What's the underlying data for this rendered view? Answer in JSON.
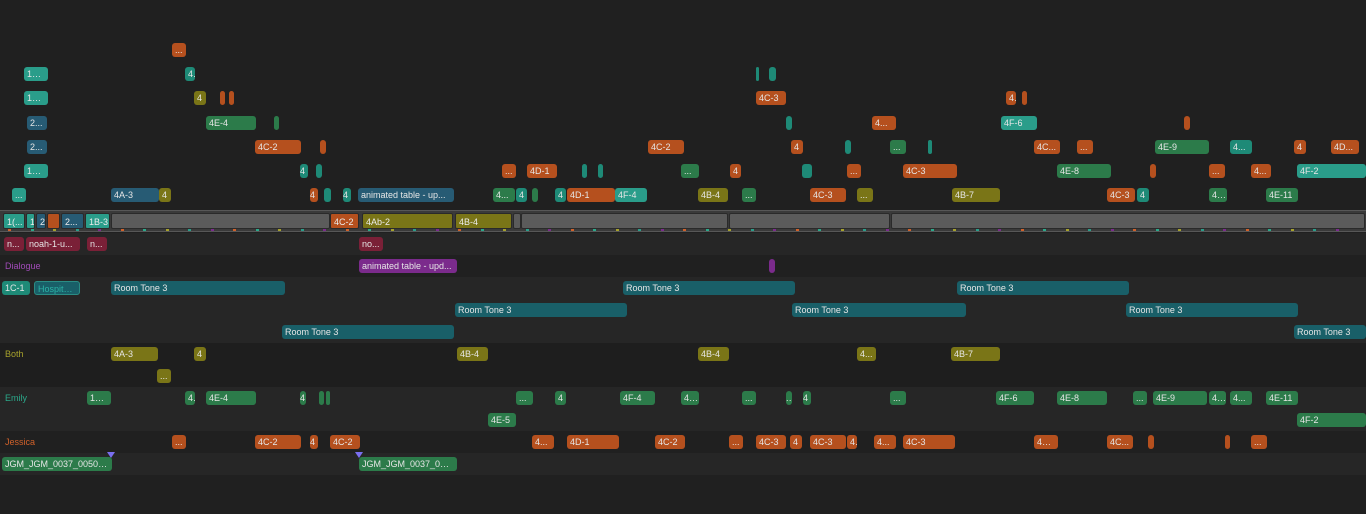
{
  "colors": {
    "teal": "#1e8a77",
    "teal_light": "#2a9d8a",
    "blue": "#275b74",
    "orange": "#b5501e",
    "olive": "#7a7517",
    "green": "#2c7b4a",
    "dark_teal": "#195f68",
    "maroon": "#7a2037",
    "purple": "#7b2b8c",
    "primary_gray": "#5b5b5b"
  },
  "roles": {
    "dialogue": "Dialogue",
    "both": "Both",
    "emily": "Emily",
    "jessica": "Jessica"
  },
  "lanes": {
    "row0": [
      "..."
    ],
    "row1": [
      "1C...",
      "4",
      "",
      ""
    ],
    "row2": [
      "1C...",
      "4",
      "",
      "",
      "4C-3",
      "4",
      ""
    ],
    "row3": [
      "2...",
      "4E-4",
      "",
      "",
      "4...",
      "4F-6",
      ""
    ],
    "row4": [
      "2...",
      "4C-2",
      "",
      "4C-2",
      "4",
      "",
      "...",
      "",
      "4C...",
      "...",
      "4E-9",
      "4...",
      "4",
      "4D..."
    ],
    "row5": [
      "1C...",
      "4",
      "",
      "...",
      "4D-1",
      "",
      "",
      "...",
      "4",
      "",
      "...",
      "4C-3",
      "4E-8",
      "",
      "...",
      "4...",
      "4F-2"
    ],
    "row6": [
      "...",
      "4A-3",
      "4",
      "4",
      "",
      "4",
      "animated table - up...",
      "4...",
      "4",
      "",
      "4",
      "4D-1",
      "4F-4",
      "4B-4",
      "...",
      "4C-3",
      "...",
      "4B-7",
      "4C-3",
      "4",
      "4...",
      "4E-11"
    ]
  },
  "primary": [
    "1(...",
    "1",
    "2",
    "",
    "2...",
    "1B-3",
    "",
    "4C-2",
    "4Ab-2",
    "4B-4",
    "",
    "",
    "",
    ""
  ],
  "below": {
    "maroon": [
      "n...",
      "noah-1-u...",
      "n...",
      "no..."
    ],
    "dialogue": [
      "animated table - upd...",
      ""
    ],
    "room1": [
      "1C-1",
      "Hospital 3",
      "Room Tone 3",
      "Room Tone 3",
      "Room Tone 3"
    ],
    "room2": [
      "Room Tone 3",
      "Room Tone 3",
      "Room Tone 3"
    ],
    "room3": [
      "Room Tone 3",
      "Room Tone 3"
    ],
    "both1": [
      "4A-3",
      "4",
      "4B-4",
      "4B-4",
      "4...",
      "4B-7"
    ],
    "both2": [
      "..."
    ],
    "emily1": [
      "1B-3",
      "4",
      "4E-4",
      "4",
      "",
      "",
      "...",
      "4",
      "4F-4",
      "4...",
      "...",
      "...",
      "4",
      "...",
      "4F-6",
      "4E-8",
      "...",
      "4E-9",
      "4...",
      "4...",
      "4E-11"
    ],
    "emily2": [
      "4E-5",
      "4F-2"
    ],
    "jessica": [
      "...",
      "4C-2",
      "4",
      "4C-2",
      "4...",
      "4D-1",
      "4C-2",
      "...",
      "4C-3",
      "4",
      "4C-3",
      "4",
      "4...",
      "4C-3",
      "4C...",
      "4C...",
      "",
      "",
      "..."
    ],
    "green": [
      "JGM_JGM_0037_00501_...",
      "JGM_JGM_0037_005..."
    ]
  }
}
